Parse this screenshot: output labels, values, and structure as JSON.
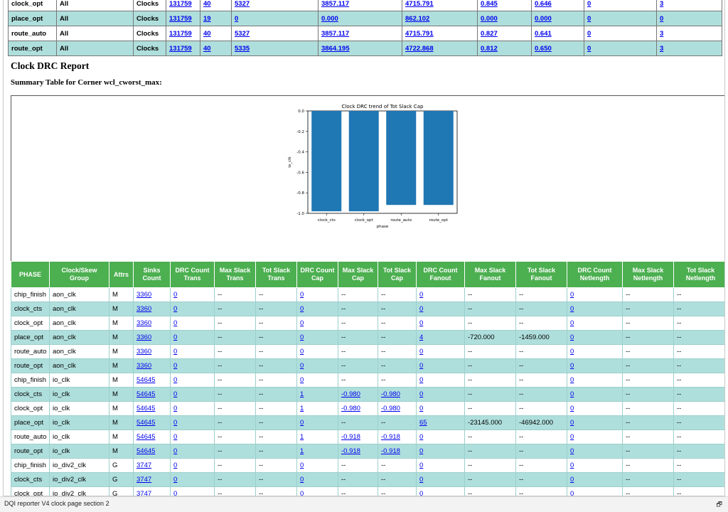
{
  "top_table": {
    "rows": [
      [
        "clock_opt",
        "All",
        "Clocks",
        "131759",
        "40",
        "5327",
        "3857.117",
        "4715.791",
        "0.845",
        "0.646",
        "0",
        "3"
      ],
      [
        "place_opt",
        "All",
        "Clocks",
        "131759",
        "19",
        "0",
        "0.000",
        "862.102",
        "0.000",
        "0.000",
        "0",
        "0"
      ],
      [
        "route_auto",
        "All",
        "Clocks",
        "131759",
        "40",
        "5327",
        "3857.117",
        "4715.791",
        "0.827",
        "0.641",
        "0",
        "3"
      ],
      [
        "route_opt",
        "All",
        "Clocks",
        "131759",
        "40",
        "5335",
        "3864.195",
        "4722.868",
        "0.812",
        "0.650",
        "0",
        "3"
      ]
    ],
    "link_cols": [
      3,
      4,
      5,
      6,
      7,
      8,
      9,
      10,
      11
    ]
  },
  "section_title": "Clock DRC Report",
  "summary_title": "Summary Table for Corner wcl_cworst_max:",
  "chart_data": {
    "type": "bar",
    "title": "Clock DRC trend of Tot Slack Cap",
    "xlabel": "phase",
    "ylabel": "io_clk",
    "categories": [
      "clock_cts",
      "clock_opt",
      "route_auto",
      "route_opt"
    ],
    "values": [
      -0.98,
      -0.98,
      -0.918,
      -0.918
    ],
    "ylim": [
      -1.0,
      0.0
    ],
    "yticks": [
      "0.0",
      "-0.2",
      "-0.4",
      "-0.6",
      "-0.8",
      "-1.0"
    ],
    "bar_color": "#1f77b4"
  },
  "main_table": {
    "headers": [
      "PHASE",
      "Clock/Skew Group",
      "Attrs",
      "Sinks Count",
      "DRC Count Trans",
      "Max Slack Trans",
      "Tot Slack Trans",
      "DRC Count Cap",
      "Max Slack Cap",
      "Tot Slack Cap",
      "DRC Count Fanout",
      "Max Slack Fanout",
      "Tot Slack Fanout",
      "DRC Count Netlength",
      "Max Slack Netlength",
      "Tot Slack Netlength"
    ],
    "rows": [
      [
        "chip_finish",
        "aon_clk",
        "M",
        "3360",
        "0",
        "--",
        "--",
        "0",
        "--",
        "--",
        "0",
        "--",
        "--",
        "0",
        "--",
        "--"
      ],
      [
        "clock_cts",
        "aon_clk",
        "M",
        "3360",
        "0",
        "--",
        "--",
        "0",
        "--",
        "--",
        "0",
        "--",
        "--",
        "0",
        "--",
        "--"
      ],
      [
        "clock_opt",
        "aon_clk",
        "M",
        "3360",
        "0",
        "--",
        "--",
        "0",
        "--",
        "--",
        "0",
        "--",
        "--",
        "0",
        "--",
        "--"
      ],
      [
        "place_opt",
        "aon_clk",
        "M",
        "3360",
        "0",
        "--",
        "--",
        "0",
        "--",
        "--",
        "4",
        "-720.000",
        "-1459.000",
        "0",
        "--",
        "--"
      ],
      [
        "route_auto",
        "aon_clk",
        "M",
        "3360",
        "0",
        "--",
        "--",
        "0",
        "--",
        "--",
        "0",
        "--",
        "--",
        "0",
        "--",
        "--"
      ],
      [
        "route_opt",
        "aon_clk",
        "M",
        "3360",
        "0",
        "--",
        "--",
        "0",
        "--",
        "--",
        "0",
        "--",
        "--",
        "0",
        "--",
        "--"
      ],
      [
        "chip_finish",
        "io_clk",
        "M",
        "54645",
        "0",
        "--",
        "--",
        "0",
        "--",
        "--",
        "0",
        "--",
        "--",
        "0",
        "--",
        "--"
      ],
      [
        "clock_cts",
        "io_clk",
        "M",
        "54645",
        "0",
        "--",
        "--",
        "1",
        "-0.980",
        "-0.980",
        "0",
        "--",
        "--",
        "0",
        "--",
        "--"
      ],
      [
        "clock_opt",
        "io_clk",
        "M",
        "54645",
        "0",
        "--",
        "--",
        "1",
        "-0.980",
        "-0.980",
        "0",
        "--",
        "--",
        "0",
        "--",
        "--"
      ],
      [
        "place_opt",
        "io_clk",
        "M",
        "54645",
        "0",
        "--",
        "--",
        "0",
        "--",
        "--",
        "65",
        "-23145.000",
        "-46942.000",
        "0",
        "--",
        "--"
      ],
      [
        "route_auto",
        "io_clk",
        "M",
        "54645",
        "0",
        "--",
        "--",
        "1",
        "-0.918",
        "-0.918",
        "0",
        "--",
        "--",
        "0",
        "--",
        "--"
      ],
      [
        "route_opt",
        "io_clk",
        "M",
        "54645",
        "0",
        "--",
        "--",
        "1",
        "-0.918",
        "-0.918",
        "0",
        "--",
        "--",
        "0",
        "--",
        "--"
      ],
      [
        "chip_finish",
        "io_div2_clk",
        "G",
        "3747",
        "0",
        "--",
        "--",
        "0",
        "--",
        "--",
        "0",
        "--",
        "--",
        "0",
        "--",
        "--"
      ],
      [
        "clock_cts",
        "io_div2_clk",
        "G",
        "3747",
        "0",
        "--",
        "--",
        "0",
        "--",
        "--",
        "0",
        "--",
        "--",
        "0",
        "--",
        "--"
      ],
      [
        "clock_opt",
        "io_div2_clk",
        "G",
        "3747",
        "0",
        "--",
        "--",
        "0",
        "--",
        "--",
        "0",
        "--",
        "--",
        "0",
        "--",
        "--"
      ]
    ],
    "always_link_cols": [
      3,
      4,
      7,
      10,
      13
    ]
  },
  "status_bar": {
    "text": "DQI reporter V4 clock page section 2",
    "icon": "restore-window-icon"
  }
}
